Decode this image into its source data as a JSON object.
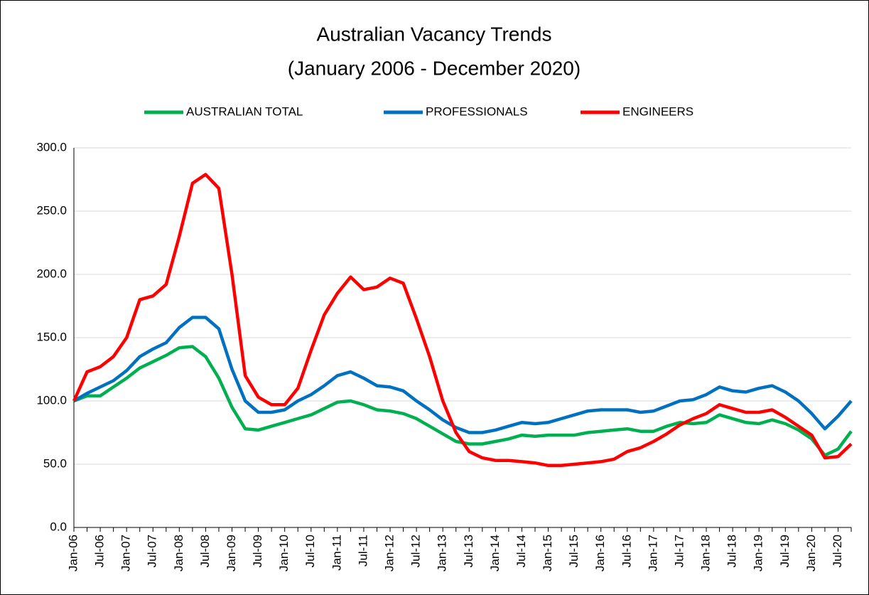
{
  "chart_data": {
    "type": "line",
    "title": "Australian Vacancy Trends",
    "subtitle": "(January 2006 - December 2020)",
    "categories": [
      "Jan-06",
      null,
      "Jul-06",
      null,
      "Jan-07",
      null,
      "Jul-07",
      null,
      "Jan-08",
      null,
      "Jul-08",
      null,
      "Jan-09",
      null,
      "Jul-09",
      null,
      "Jan-10",
      null,
      "Jul-10",
      null,
      "Jan-11",
      null,
      "Jul-11",
      null,
      "Jan-12",
      null,
      "Jul-12",
      null,
      "Jan-13",
      null,
      "Jul-13",
      null,
      "Jan-14",
      null,
      "Jul-14",
      null,
      "Jan-15",
      null,
      "Jul-15",
      null,
      "Jan-16",
      null,
      "Jul-16",
      null,
      "Jan-17",
      null,
      "Jul-17",
      null,
      "Jan-18",
      null,
      "Jul-18",
      null,
      "Jan-19",
      null,
      "Jul-19",
      null,
      "Jan-20",
      null,
      "Jul-20",
      null
    ],
    "series": [
      {
        "name": "AUSTRALIAN TOTAL",
        "color": "#00b050",
        "values": [
          100,
          104,
          104,
          111,
          118,
          126,
          131,
          136,
          142,
          143,
          135,
          118,
          95,
          78,
          77,
          80,
          83,
          86,
          89,
          94,
          99,
          100,
          97,
          93,
          92,
          90,
          86,
          80,
          74,
          68,
          66,
          66,
          68,
          70,
          73,
          72,
          73,
          73,
          73,
          75,
          76,
          77,
          78,
          76,
          76,
          80,
          83,
          82,
          83,
          89,
          86,
          83,
          82,
          85,
          82,
          77,
          70,
          57,
          62,
          76
        ]
      },
      {
        "name": "PROFESSIONALS",
        "color": "#0070c0",
        "values": [
          100,
          106,
          111,
          116,
          124,
          135,
          141,
          146,
          158,
          166,
          166,
          157,
          125,
          100,
          91,
          91,
          93,
          100,
          105,
          112,
          120,
          123,
          118,
          112,
          111,
          108,
          100,
          93,
          85,
          79,
          75,
          75,
          77,
          80,
          83,
          82,
          83,
          86,
          89,
          92,
          93,
          93,
          93,
          91,
          92,
          96,
          100,
          101,
          105,
          111,
          108,
          107,
          110,
          112,
          107,
          100,
          90,
          78,
          88,
          100
        ]
      },
      {
        "name": "ENGINEERS",
        "color": "#ff0000",
        "values": [
          100,
          123,
          127,
          135,
          150,
          180,
          183,
          192,
          230,
          272,
          279,
          268,
          200,
          120,
          103,
          97,
          97,
          110,
          140,
          168,
          185,
          198,
          188,
          190,
          197,
          193,
          165,
          135,
          100,
          75,
          60,
          55,
          53,
          53,
          52,
          51,
          49,
          49,
          50,
          51,
          52,
          54,
          60,
          63,
          68,
          74,
          81,
          86,
          90,
          97,
          94,
          91,
          91,
          93,
          87,
          80,
          73,
          55,
          56,
          66
        ]
      }
    ],
    "ylim": [
      0,
      300
    ],
    "yticks": [
      {
        "value": 0,
        "label": "0.0"
      },
      {
        "value": 50,
        "label": "50.0"
      },
      {
        "value": 100,
        "label": "100.0"
      },
      {
        "value": 150,
        "label": "150.0"
      },
      {
        "value": 200,
        "label": "200.0"
      },
      {
        "value": 250,
        "label": "250.0"
      },
      {
        "value": 300,
        "label": "300.0"
      }
    ],
    "grid": true,
    "legend": "top"
  }
}
